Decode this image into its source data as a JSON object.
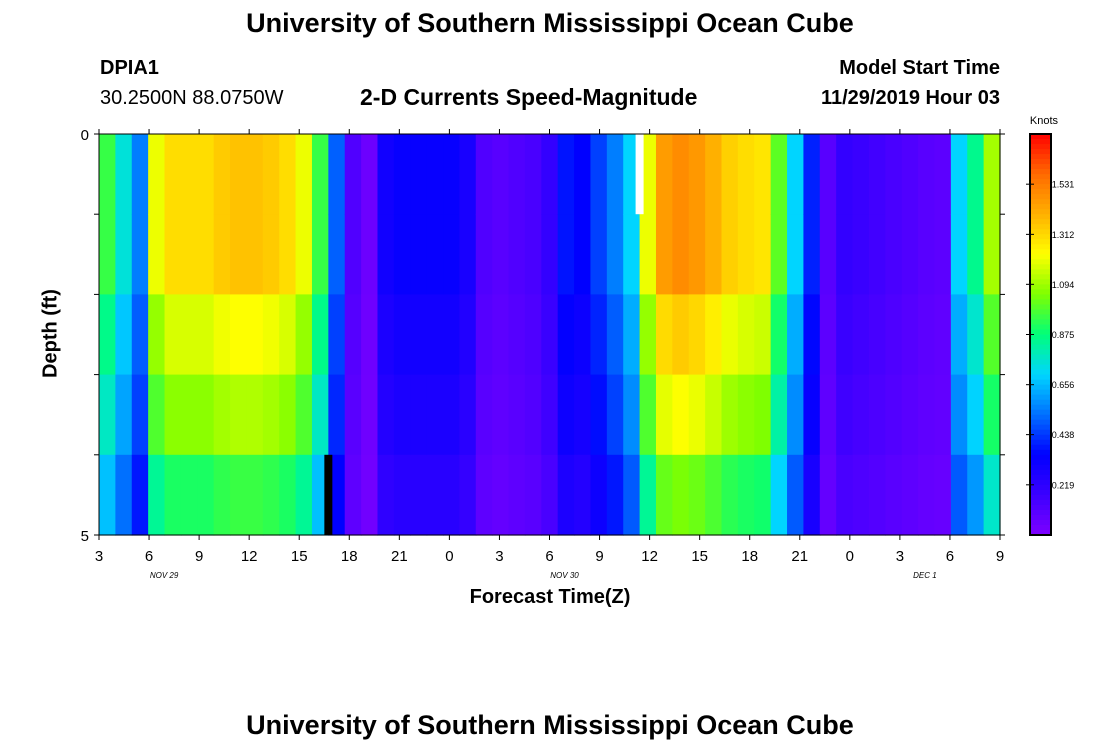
{
  "header": {
    "title": "University of Southern Mississippi Ocean Cube",
    "station_id": "DPIA1",
    "station_coords": "30.2500N 88.0750W",
    "model_start_label": "Model Start Time",
    "model_start_value": "11/29/2019 Hour 03",
    "footer_title": "University of Southern Mississippi Ocean Cube"
  },
  "chart_data": {
    "type": "heatmap",
    "title": "2-D Currents Speed-Magnitude",
    "xlabel": "Forecast Time(Z)",
    "ylabel": "Depth (ft)",
    "units": "Knots",
    "x_tick_labels": [
      "3",
      "6",
      "9",
      "12",
      "15",
      "18",
      "21",
      "0",
      "3",
      "6",
      "9",
      "12",
      "15",
      "18",
      "21",
      "0",
      "3",
      "6",
      "9"
    ],
    "date_labels": [
      {
        "text": "NOV 29",
        "tick_index": 1.3
      },
      {
        "text": "NOV 30",
        "tick_index": 9.3
      },
      {
        "text": "DEC 1",
        "tick_index": 16.5
      }
    ],
    "y_range": [
      0,
      5
    ],
    "y_tick_labels": [
      "0",
      "5"
    ],
    "colorbar": {
      "range": [
        0,
        1.75
      ],
      "tick_values": [
        0.219,
        0.438,
        0.656,
        0.875,
        1.094,
        1.312,
        1.531
      ],
      "tick_labels": [
        "0.219",
        "0.438",
        "0.656",
        "0.875",
        "1.094",
        "1.312",
        "1.531"
      ],
      "colors": [
        "#7f00ff",
        "#3b00ff",
        "#0000ff",
        "#0070ff",
        "#00d5ff",
        "#00ff7a",
        "#7fff00",
        "#ffff00",
        "#ffb000",
        "#ff6a00",
        "#ff0000"
      ]
    },
    "time_hours": [
      3,
      4,
      5,
      6,
      7,
      8,
      9,
      10,
      11,
      12,
      13,
      14,
      15,
      16,
      17,
      18,
      19,
      20,
      21,
      22,
      23,
      24,
      25,
      26,
      27,
      28,
      29,
      30,
      31,
      32,
      33,
      34,
      35,
      36,
      37,
      38,
      39,
      40,
      41,
      42,
      43,
      44,
      45,
      46,
      47,
      48,
      49,
      50,
      51,
      52,
      53,
      54,
      55,
      56,
      57
    ],
    "depth_layers_ft": [
      0.5,
      1.5,
      2.5,
      3.5,
      4.5
    ],
    "surface_speed_knots": [
      0.95,
      0.75,
      0.55,
      1.2,
      1.3,
      1.3,
      1.3,
      1.34,
      1.36,
      1.36,
      1.34,
      1.3,
      1.2,
      0.95,
      0.5,
      0.12,
      0.05,
      0.3,
      0.33,
      0.33,
      0.33,
      0.33,
      0.28,
      0.12,
      0.1,
      0.12,
      0.14,
      0.2,
      0.38,
      0.35,
      0.45,
      0.55,
      0.7,
      1.2,
      1.45,
      1.49,
      1.46,
      1.4,
      1.33,
      1.3,
      1.28,
      1.0,
      0.7,
      0.4,
      0.1,
      0.2,
      0.18,
      0.16,
      0.14,
      0.12,
      0.1,
      0.09,
      0.7,
      0.85,
      1.1
    ],
    "layer_scale": [
      1.0,
      1.0,
      0.9,
      0.82,
      0.7
    ],
    "missing_cells": [
      {
        "time": 35.5,
        "depth_layer": 0,
        "kind": "white"
      },
      {
        "time": 16.5,
        "depth_layer": 4,
        "kind": "black"
      }
    ]
  }
}
